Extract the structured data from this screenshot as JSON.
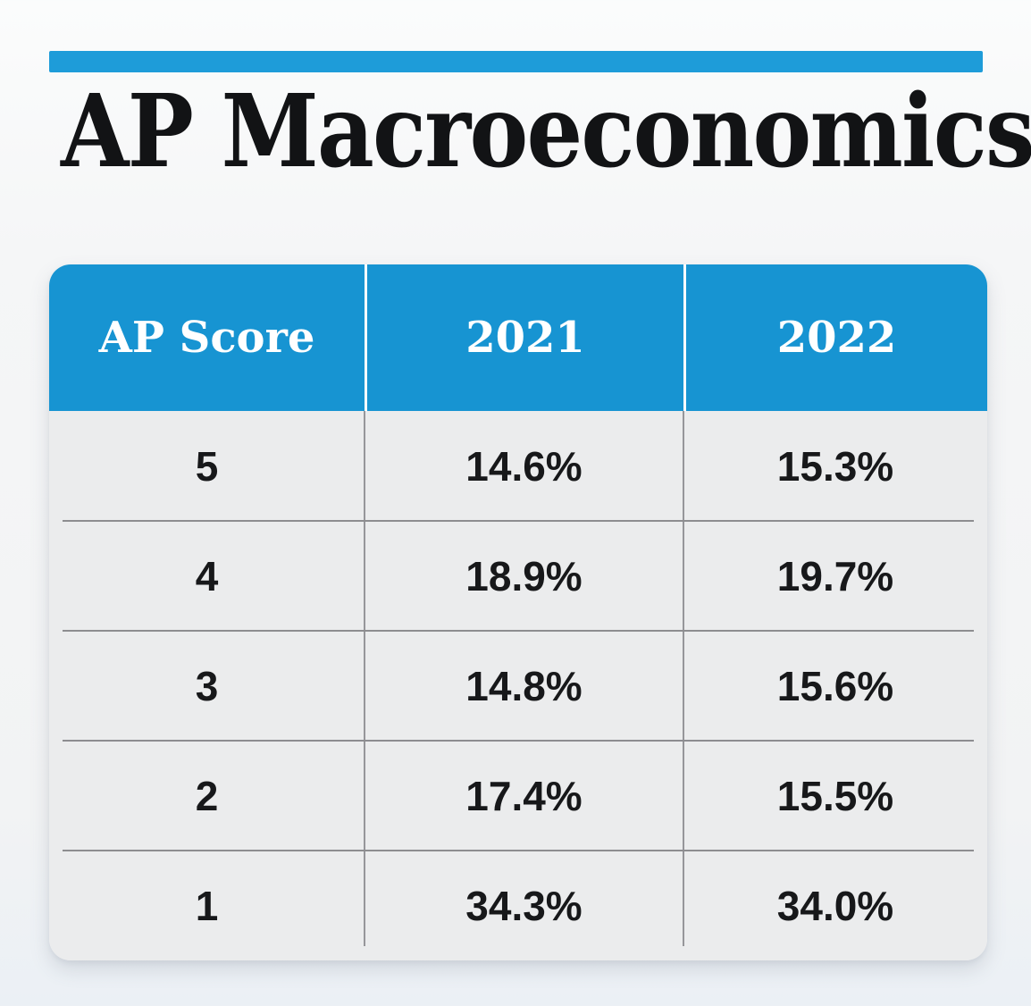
{
  "page": {
    "title": "AP Macroeconomics"
  },
  "colors": {
    "accent_bar_blue": "#1e9cd9",
    "table_header_blue": "#1794d2",
    "table_body_gray": "#ebeced",
    "divider_gray": "#8d8d90",
    "text_black": "#17181a",
    "header_text_white": "#ffffff"
  },
  "table": {
    "columns": [
      "AP Score",
      "2021",
      "2022"
    ],
    "rows": [
      [
        "5",
        "14.6%",
        "15.3%"
      ],
      [
        "4",
        "18.9%",
        "19.7%"
      ],
      [
        "3",
        "14.8%",
        "15.6%"
      ],
      [
        "2",
        "17.4%",
        "15.5%"
      ],
      [
        "1",
        "34.3%",
        "34.0%"
      ]
    ]
  },
  "chart_data": {
    "type": "table",
    "title": "AP Macroeconomics",
    "columns": [
      "AP Score",
      "2021",
      "2022"
    ],
    "categories": [
      "5",
      "4",
      "3",
      "2",
      "1"
    ],
    "series": [
      {
        "name": "2021",
        "values": [
          14.6,
          18.9,
          14.8,
          17.4,
          34.3
        ]
      },
      {
        "name": "2022",
        "values": [
          15.3,
          19.7,
          15.6,
          15.5,
          34.0
        ]
      }
    ],
    "unit": "%"
  }
}
